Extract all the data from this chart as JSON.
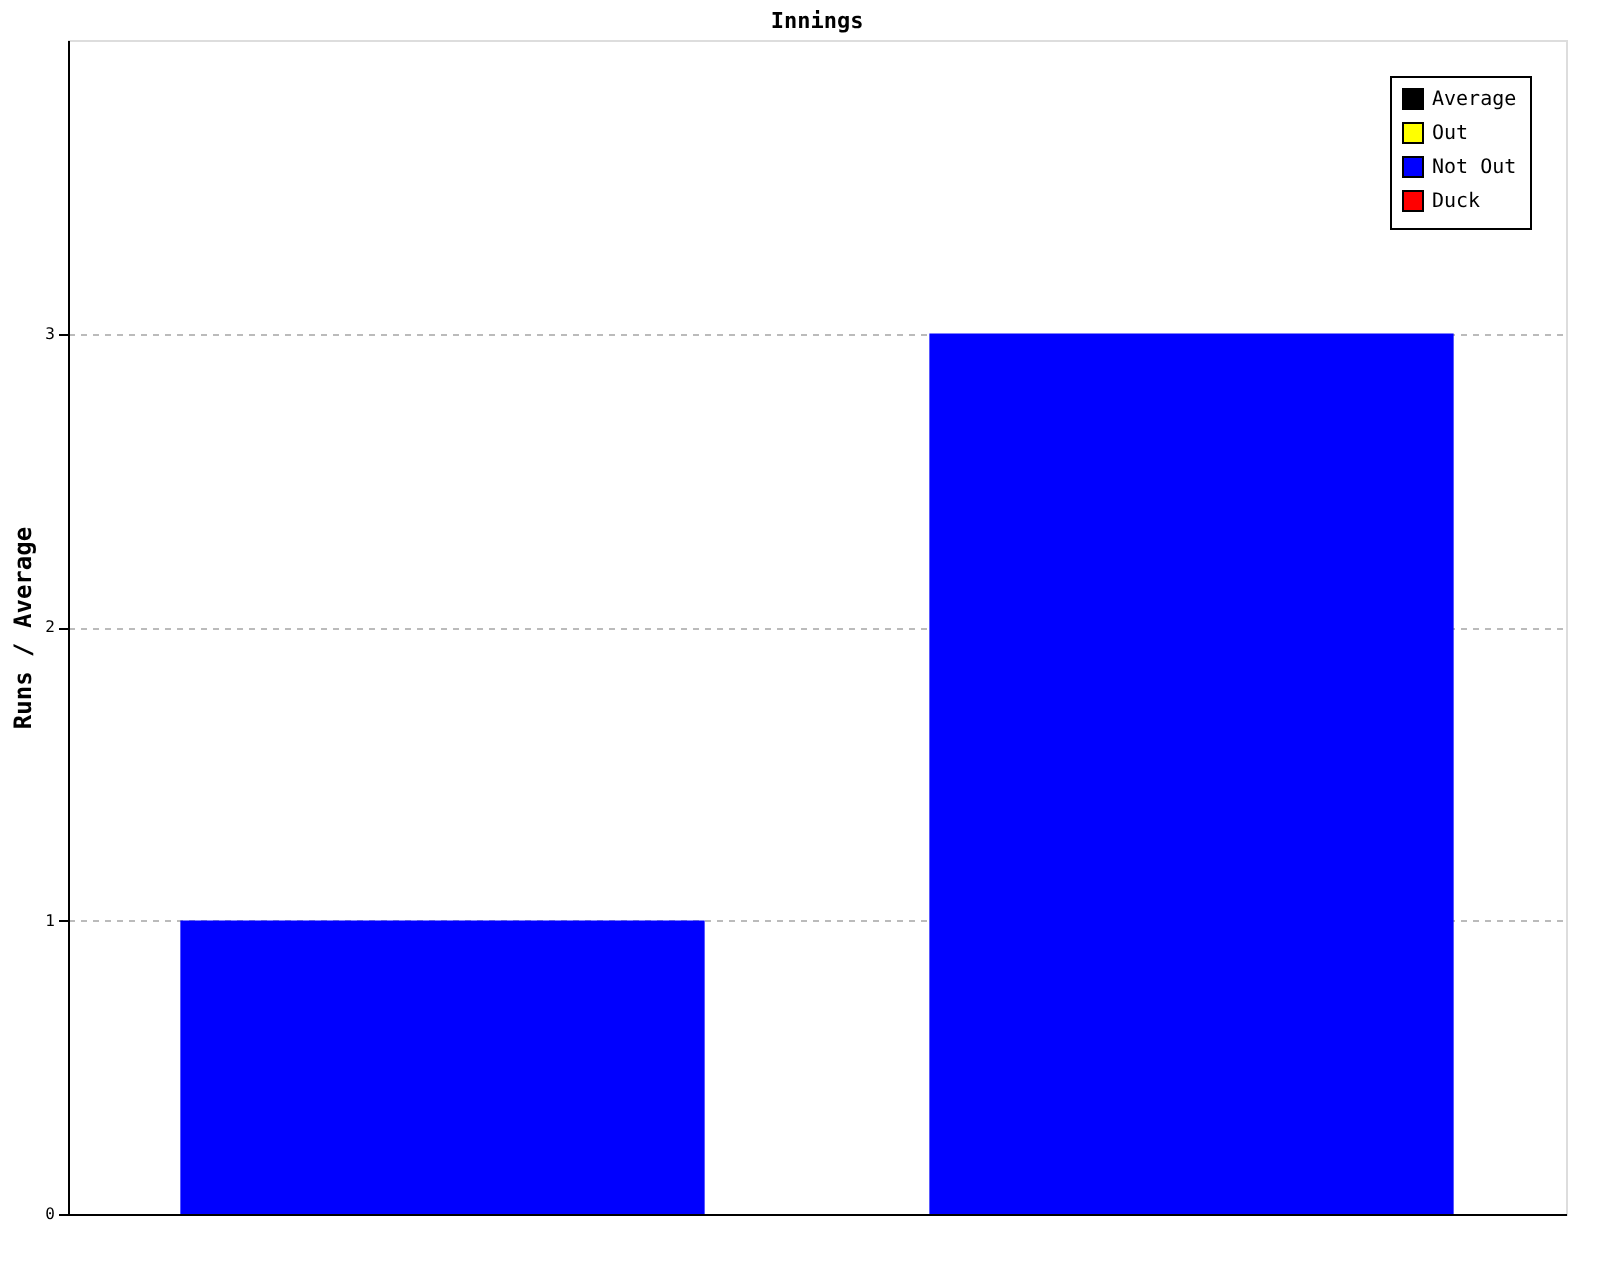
{
  "chart_data": {
    "type": "bar",
    "title": "Innings",
    "ylabel": "Runs / Average",
    "categories": [
      null,
      null
    ],
    "series": [
      {
        "name": "Average",
        "color": "#000000",
        "values": [
          null,
          null
        ]
      },
      {
        "name": "Out",
        "color": "#ffff00",
        "values": [
          null,
          null
        ]
      },
      {
        "name": "Not Out",
        "color": "#0000ff",
        "values": [
          1,
          3
        ]
      },
      {
        "name": "Duck",
        "color": "#ff0000",
        "values": [
          null,
          null
        ]
      }
    ],
    "ylim": [
      0,
      4
    ],
    "yticks": [
      0,
      1,
      2,
      3
    ],
    "grid": "y",
    "legend": "top right",
    "tick_labels": "y"
  }
}
